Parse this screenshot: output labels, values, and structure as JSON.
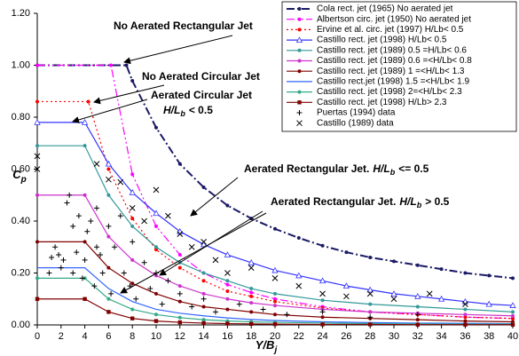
{
  "chart_data": {
    "type": "line",
    "x_label": {
      "text": "Y/B",
      "subscript": "j"
    },
    "y_label": {
      "text": "C",
      "subscript": "p"
    },
    "xlim": [
      0,
      40
    ],
    "ylim": [
      0,
      1.2
    ],
    "xticks": [
      0,
      2,
      4,
      6,
      8,
      10,
      12,
      14,
      16,
      18,
      20,
      22,
      24,
      26,
      28,
      30,
      32,
      34,
      36,
      38,
      40
    ],
    "yticks": [
      {
        "value": 0,
        "label": "0.00"
      },
      {
        "value": 0.2,
        "label": "0.20"
      },
      {
        "value": 0.4,
        "label": "0.40"
      },
      {
        "value": 0.6,
        "label": "0.60"
      },
      {
        "value": 0.8,
        "label": "0.80"
      },
      {
        "value": 1.0,
        "label": "1.00"
      },
      {
        "value": 1.2,
        "label": "1.20"
      }
    ],
    "grid": false,
    "legend": "top-right",
    "series": [
      {
        "name": "Cola rect. jet (1965) No aerated jet",
        "color": "#1a1a66",
        "dash": "dash-dot",
        "marker": "circle",
        "x": [
          0,
          7.5,
          8,
          10,
          12,
          14,
          16,
          18,
          20,
          22,
          24,
          26,
          28,
          30,
          32,
          34,
          36,
          38,
          40
        ],
        "values": [
          1,
          1,
          0.94,
          0.76,
          0.62,
          0.53,
          0.46,
          0.41,
          0.37,
          0.335,
          0.305,
          0.28,
          0.26,
          0.245,
          0.23,
          0.215,
          0.2,
          0.19,
          0.18
        ]
      },
      {
        "name": "Albertson circ. jet (1950) No aerated jet",
        "color": "#ff00ff",
        "dash": "dash-dot-dot",
        "marker": "circle",
        "x": [
          0,
          6.2,
          8,
          10,
          12,
          14,
          16,
          18,
          20,
          24,
          28,
          32,
          36,
          40
        ],
        "values": [
          1,
          1,
          0.58,
          0.38,
          0.27,
          0.2,
          0.155,
          0.125,
          0.1,
          0.07,
          0.05,
          0.04,
          0.03,
          0.025
        ]
      },
      {
        "name": "Ervine et al. circ. jet (1997) H/Lb< 0.5",
        "color": "#ff0000",
        "dash": "dot",
        "marker": "circle",
        "x": [
          0,
          4.3,
          6,
          8,
          10,
          12,
          14,
          16,
          18,
          20,
          24,
          28,
          32,
          36,
          40
        ],
        "values": [
          0.86,
          0.86,
          0.6,
          0.41,
          0.29,
          0.22,
          0.17,
          0.13,
          0.11,
          0.09,
          0.065,
          0.05,
          0.04,
          0.03,
          0.025
        ]
      },
      {
        "name": "Castillo rect. jet (1998)   H/Lb< 0.5",
        "color": "#3333ff",
        "dash": "solid",
        "marker": "triangle",
        "x": [
          0,
          4,
          6,
          8,
          10,
          12,
          14,
          16,
          18,
          20,
          22,
          24,
          26,
          28,
          30,
          32,
          34,
          36,
          38,
          40
        ],
        "values": [
          0.78,
          0.78,
          0.62,
          0.51,
          0.43,
          0.36,
          0.31,
          0.27,
          0.24,
          0.21,
          0.19,
          0.17,
          0.15,
          0.135,
          0.12,
          0.11,
          0.1,
          0.09,
          0.08,
          0.075
        ]
      },
      {
        "name": "Castillo rect. jet (1989) 0.5 =H/Lb< 0.6",
        "color": "#339999",
        "dash": "solid",
        "marker": "circle",
        "x": [
          0,
          4,
          6,
          8,
          10,
          12,
          14,
          16,
          18,
          20,
          24,
          28,
          32,
          36,
          40
        ],
        "values": [
          0.69,
          0.69,
          0.5,
          0.38,
          0.3,
          0.24,
          0.2,
          0.17,
          0.14,
          0.12,
          0.095,
          0.08,
          0.07,
          0.06,
          0.05
        ]
      },
      {
        "name": "Castillo rect. jet (1989) 0.6 =<H/Lb< 0.8",
        "color": "#cc33cc",
        "dash": "solid",
        "marker": "circle",
        "x": [
          0,
          4,
          6,
          8,
          10,
          12,
          14,
          16,
          18,
          20,
          24,
          28,
          32,
          36,
          40
        ],
        "values": [
          0.5,
          0.5,
          0.34,
          0.25,
          0.19,
          0.15,
          0.12,
          0.1,
          0.085,
          0.075,
          0.06,
          0.05,
          0.045,
          0.04,
          0.035
        ]
      },
      {
        "name": "Castillo rect. jet (1989) 1 =<H/Lb< 1.3",
        "color": "#800000",
        "dash": "solid",
        "marker": "circle",
        "x": [
          0,
          4,
          6,
          8,
          10,
          12,
          14,
          16,
          18,
          20,
          24,
          28,
          32,
          36,
          40
        ],
        "values": [
          0.32,
          0.32,
          0.22,
          0.16,
          0.12,
          0.09,
          0.07,
          0.06,
          0.05,
          0.04,
          0.03,
          0.025,
          0.02,
          0.015,
          0.012
        ]
      },
      {
        "name": "Castillo rect.jet (1998) 1.5 =<H/Lb< 1.9",
        "color": "#3366ff",
        "dash": "solid",
        "marker": "none",
        "x": [
          0,
          4,
          6,
          8,
          10,
          12,
          14,
          16,
          18,
          20,
          24,
          28,
          32,
          36,
          40
        ],
        "values": [
          0.22,
          0.22,
          0.14,
          0.09,
          0.06,
          0.045,
          0.035,
          0.027,
          0.021,
          0.017,
          0.012,
          0.009,
          0.007,
          0.006,
          0.005
        ]
      },
      {
        "name": "Castillo rect. jet (1998) 2=<H/Lb< 2.3",
        "color": "#33aa88",
        "dash": "solid",
        "marker": "circle",
        "x": [
          0,
          4,
          6,
          8,
          10,
          12,
          14,
          16,
          18,
          20,
          24,
          28,
          32,
          36,
          40
        ],
        "values": [
          0.18,
          0.18,
          0.1,
          0.06,
          0.04,
          0.028,
          0.02,
          0.015,
          0.012,
          0.01,
          0.007,
          0.005,
          0.004,
          0.003,
          0.003
        ]
      },
      {
        "name": "Castillo rect. jet (1998) H/Lb> 2.3",
        "color": "#800000",
        "dash": "solid",
        "marker": "square",
        "x": [
          0,
          4,
          6,
          8,
          10,
          12,
          14,
          16,
          18,
          20,
          24,
          28,
          32,
          36,
          40
        ],
        "values": [
          0.1,
          0.1,
          0.05,
          0.025,
          0.015,
          0.01,
          0.007,
          0.005,
          0.004,
          0.003,
          0.002,
          0.002,
          0.001,
          0.001,
          0.001
        ]
      },
      {
        "name": "Puertas (1994) data",
        "color": "#000000",
        "dash": "none",
        "marker": "plus",
        "x": [
          1,
          1.2,
          1.5,
          1.8,
          2,
          2.2,
          2.5,
          2.7,
          3,
          3,
          3.3,
          3.5,
          3.8,
          4,
          4.2,
          4.5,
          4.8,
          5,
          5,
          5.3,
          5.5,
          6,
          6.2,
          6.5,
          7,
          7.3,
          7.8,
          8,
          8.3,
          9,
          9.5,
          10,
          10.5,
          11,
          12,
          13,
          14,
          15,
          17,
          19,
          21,
          24,
          28,
          32
        ],
        "values": [
          0.2,
          0.26,
          0.3,
          0.27,
          0.22,
          0.25,
          0.47,
          0.5,
          0.38,
          0.2,
          0.28,
          0.42,
          0.18,
          0.25,
          0.36,
          0.4,
          0.15,
          0.45,
          0.3,
          0.27,
          0.2,
          0.38,
          0.12,
          0.3,
          0.42,
          0.2,
          0.15,
          0.32,
          0.1,
          0.24,
          0.14,
          0.2,
          0.08,
          0.17,
          0.12,
          0.07,
          0.1,
          0.05,
          0.08,
          0.06,
          0.04,
          0.05,
          0.03,
          0.04
        ]
      },
      {
        "name": "Castillo (1989) data",
        "color": "#000000",
        "dash": "none",
        "marker": "cross",
        "x": [
          0,
          0,
          5,
          6,
          7,
          8,
          9,
          10,
          11,
          12,
          13,
          14,
          15,
          16,
          18,
          20,
          22,
          24,
          26,
          28,
          30,
          33,
          36
        ],
        "values": [
          0.65,
          0.6,
          0.62,
          0.56,
          0.55,
          0.45,
          0.4,
          0.52,
          0.42,
          0.35,
          0.3,
          0.32,
          0.25,
          0.2,
          0.22,
          0.18,
          0.15,
          0.12,
          0.11,
          0.12,
          0.1,
          0.12,
          0.08
        ]
      }
    ],
    "annotations": [
      {
        "text": "No Aerated Rectangular Jet"
      },
      {
        "text": "No Aerated Circular Jet"
      },
      {
        "text": "Aerated Circular Jet",
        "italic": "H/L",
        "subscript": "b",
        "tail": "< 0.5"
      },
      {
        "text": "Aerated Rectangular Jet.",
        "italic": "H/L",
        "subscript": "b",
        "tail": "<= 0.5"
      },
      {
        "text": "Aerated Rectangular Jet.",
        "italic": "H/L",
        "subscript": "b",
        "tail": "> 0.5"
      }
    ]
  }
}
